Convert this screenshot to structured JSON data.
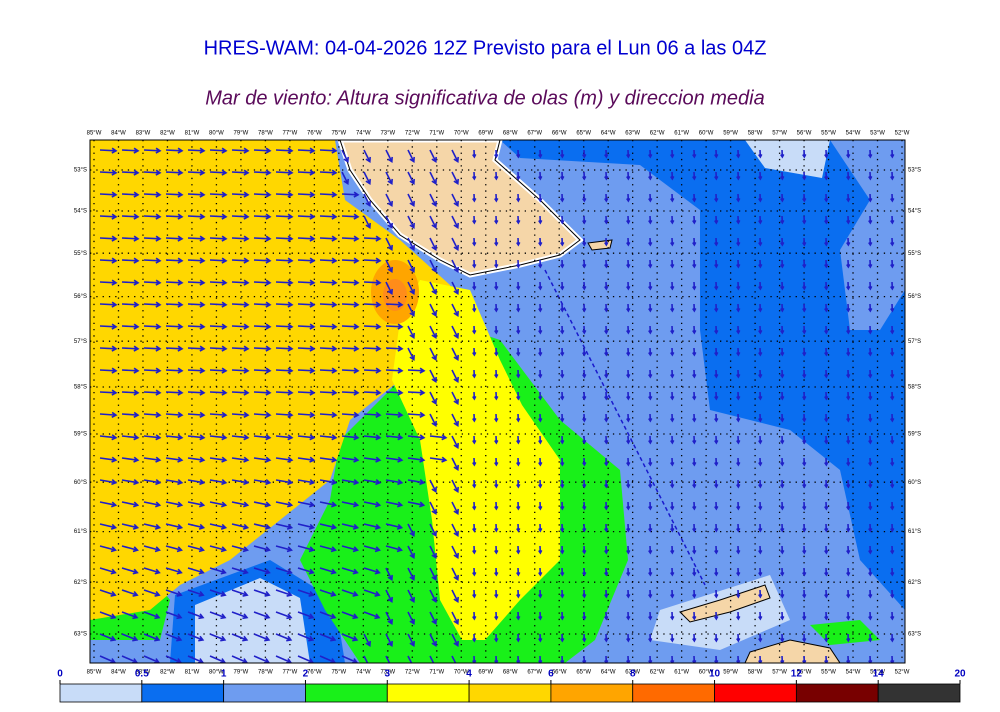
{
  "header": {
    "title": "HRES-WAM: 04-04-2026 12Z Previsto para el Lun 06 a las 04Z",
    "subtitle": "Mar de viento: Altura significativa de olas (m) y direccion media"
  },
  "map": {
    "longitudes": [
      "85°W",
      "84°W",
      "83°W",
      "82°W",
      "81°W",
      "80°W",
      "79°W",
      "78°W",
      "77°W",
      "76°W",
      "75°W",
      "74°W",
      "73°W",
      "72°W",
      "71°W",
      "70°W",
      "69°W",
      "68°W",
      "67°W",
      "66°W",
      "65°W",
      "64°W",
      "63°W",
      "62°W",
      "61°W",
      "60°W",
      "59°W",
      "58°W",
      "57°W",
      "56°W",
      "55°W",
      "54°W",
      "53°W",
      "52°W"
    ],
    "latitudes": [
      "53°S",
      "54°S",
      "55°S",
      "56°S",
      "57°S",
      "58°S",
      "59°S",
      "60°S",
      "61°S",
      "62°S",
      "63°S"
    ]
  },
  "colorbar": {
    "ticks": [
      0,
      0.5,
      1,
      2,
      3,
      4,
      6,
      8,
      10,
      12,
      14,
      20
    ],
    "colors": [
      "#c8dcf8",
      "#0a6ef0",
      "#6e9cf0",
      "#19f019",
      "#ffff00",
      "#ffd700",
      "#ffa500",
      "#ff6a00",
      "#ff0000",
      "#780000",
      "#333333"
    ]
  }
}
